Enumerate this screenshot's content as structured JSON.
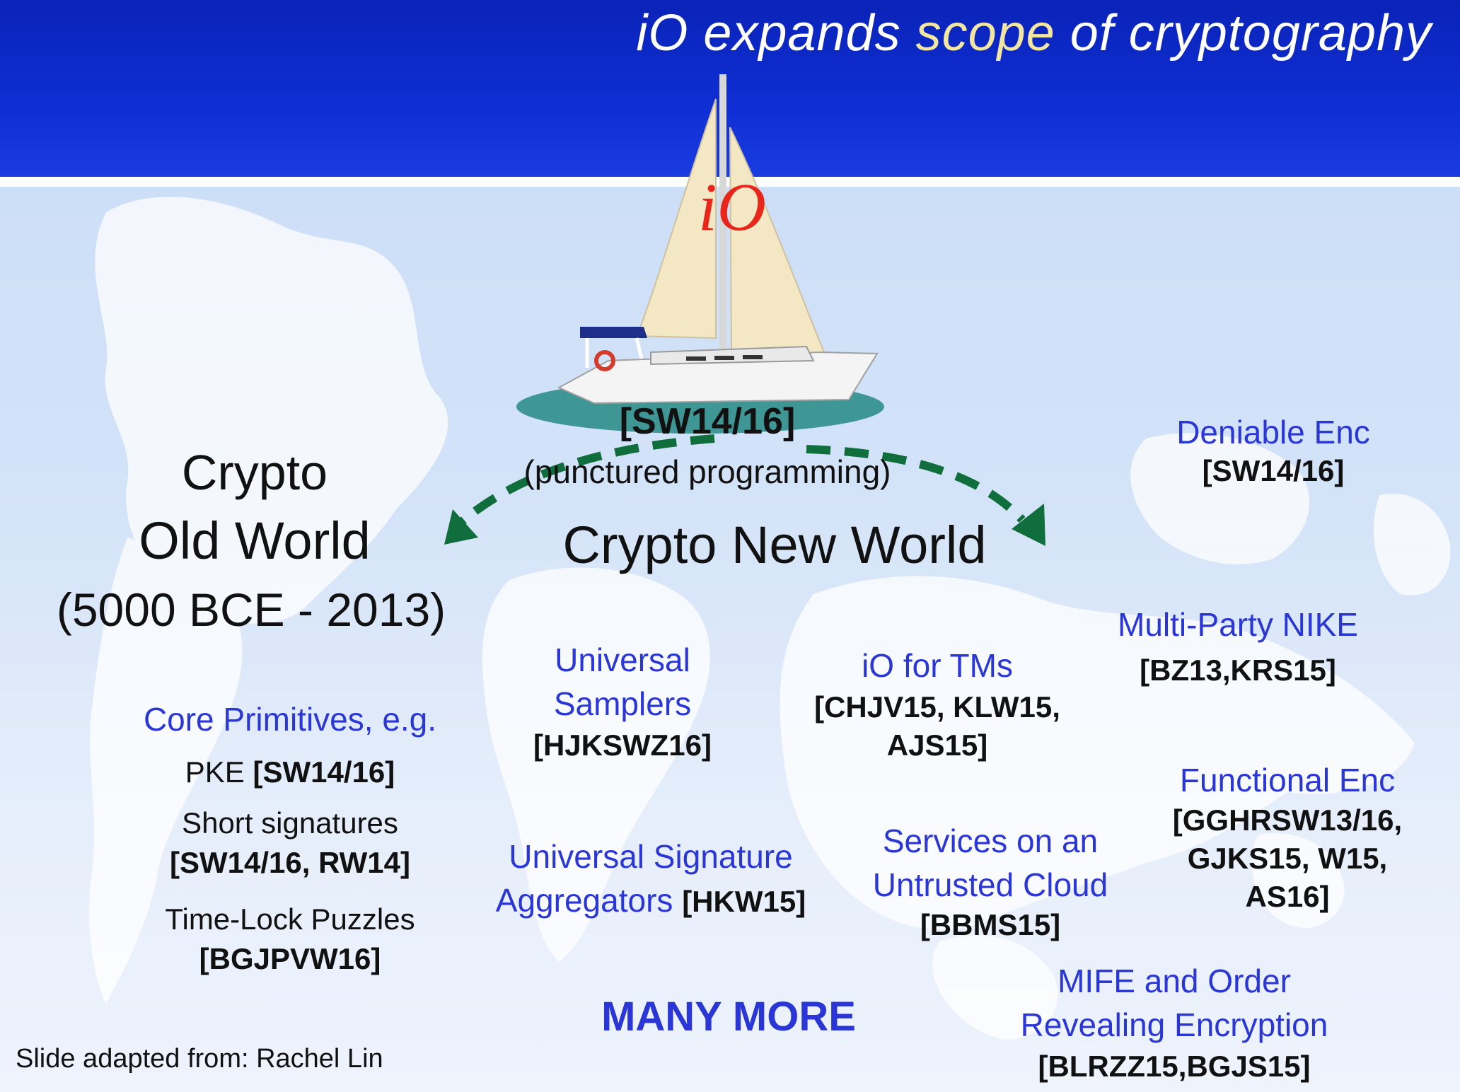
{
  "title": {
    "prefix": "iO expands ",
    "accent": "scope",
    "suffix": " of cryptography"
  },
  "boat": {
    "sail_label": "iO",
    "citation": "[SW14/16]",
    "technique": "(punctured programming)"
  },
  "old_world": {
    "heading_line1": "Crypto",
    "heading_line2": "Old World",
    "heading_line3": "(5000 BCE - 2013)",
    "core_label": "Core Primitives, e.g.",
    "items": [
      {
        "name": "PKE ",
        "cite": "[SW14/16]"
      },
      {
        "name": "Short signatures",
        "cite": "[SW14/16, RW14]"
      },
      {
        "name": "Time-Lock Puzzles",
        "cite": "[BGJPVW16]"
      }
    ]
  },
  "new_world": {
    "heading": "Crypto New World",
    "universal_samplers": {
      "line1": "Universal",
      "line2": "Samplers",
      "cite": "[HJKSWZ16]"
    },
    "io_tms": {
      "label": "iO for TMs",
      "cite_line1": "[CHJV15, KLW15,",
      "cite_line2": "AJS15]"
    },
    "signature_aggregators": {
      "line1": "Universal Signature",
      "line2": "Aggregators ",
      "cite": "[HKW15]"
    },
    "untrusted_cloud": {
      "line1": "Services on an",
      "line2": "Untrusted Cloud",
      "cite": "[BBMS15]"
    },
    "many_more": "MANY MORE"
  },
  "right_column": {
    "deniable": {
      "label": "Deniable Enc",
      "cite": "[SW14/16]"
    },
    "nike": {
      "label": "Multi-Party NIKE",
      "cite": "[BZ13,KRS15]"
    },
    "functional": {
      "label": "Functional Enc",
      "cite_line1": "[GGHRSW13/16,",
      "cite_line2": "GJKS15, W15,",
      "cite_line3": "AS16]"
    },
    "mife": {
      "line1": "MIFE and Order",
      "line2": "Revealing Encryption",
      "cite": "[BLRZZ15,BGJS15]"
    }
  },
  "footer": "Slide adapted from: Rachel Lin",
  "colors": {
    "header_blue": "#0f2fd4",
    "link_blue": "#2a37d6",
    "accent_yellow": "#f3e6a0",
    "sail_red": "#e8261c",
    "arrow_green": "#0f6e3c"
  }
}
